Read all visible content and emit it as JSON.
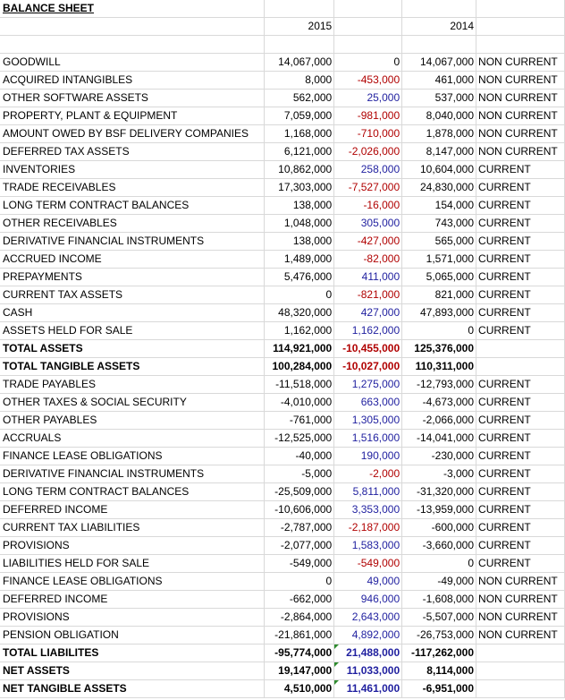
{
  "title": "BALANCE SHEET",
  "headers": {
    "col_2015": "2015",
    "col_2014": "2014"
  },
  "colors": {
    "positive_change": "#1f1f9f",
    "negative_change": "#b00000",
    "grid": "#d9d9d9",
    "comment_flag": "#2e8b2e"
  },
  "rows": [
    {
      "label": "GOODWILL",
      "y2015": "14,067,000",
      "change": "0",
      "y2014": "14,067,000",
      "class": "NON CURRENT",
      "change_sign": "zero",
      "total": false
    },
    {
      "label": "ACQUIRED INTANGIBLES",
      "y2015": "8,000",
      "change": "-453,000",
      "y2014": "461,000",
      "class": "NON CURRENT",
      "change_sign": "neg",
      "total": false
    },
    {
      "label": "OTHER SOFTWARE ASSETS",
      "y2015": "562,000",
      "change": "25,000",
      "y2014": "537,000",
      "class": "NON CURRENT",
      "change_sign": "pos",
      "total": false
    },
    {
      "label": "PROPERTY, PLANT & EQUIPMENT",
      "y2015": "7,059,000",
      "change": "-981,000",
      "y2014": "8,040,000",
      "class": "NON CURRENT",
      "change_sign": "neg",
      "total": false
    },
    {
      "label": "AMOUNT OWED BY BSF DELIVERY COMPANIES",
      "y2015": "1,168,000",
      "change": "-710,000",
      "y2014": "1,878,000",
      "class": "NON CURRENT",
      "change_sign": "neg",
      "total": false
    },
    {
      "label": "DEFERRED TAX ASSETS",
      "y2015": "6,121,000",
      "change": "-2,026,000",
      "y2014": "8,147,000",
      "class": "NON CURRENT",
      "change_sign": "neg",
      "total": false
    },
    {
      "label": "INVENTORIES",
      "y2015": "10,862,000",
      "change": "258,000",
      "y2014": "10,604,000",
      "class": "CURRENT",
      "change_sign": "pos",
      "total": false
    },
    {
      "label": "TRADE RECEIVABLES",
      "y2015": "17,303,000",
      "change": "-7,527,000",
      "y2014": "24,830,000",
      "class": "CURRENT",
      "change_sign": "neg",
      "total": false
    },
    {
      "label": "LONG TERM CONTRACT BALANCES",
      "y2015": "138,000",
      "change": "-16,000",
      "y2014": "154,000",
      "class": "CURRENT",
      "change_sign": "neg",
      "total": false
    },
    {
      "label": "OTHER RECEIVABLES",
      "y2015": "1,048,000",
      "change": "305,000",
      "y2014": "743,000",
      "class": "CURRENT",
      "change_sign": "pos",
      "total": false
    },
    {
      "label": "DERIVATIVE FINANCIAL INSTRUMENTS",
      "y2015": "138,000",
      "change": "-427,000",
      "y2014": "565,000",
      "class": "CURRENT",
      "change_sign": "neg",
      "total": false
    },
    {
      "label": "ACCRUED INCOME",
      "y2015": "1,489,000",
      "change": "-82,000",
      "y2014": "1,571,000",
      "class": "CURRENT",
      "change_sign": "neg",
      "total": false
    },
    {
      "label": "PREPAYMENTS",
      "y2015": "5,476,000",
      "change": "411,000",
      "y2014": "5,065,000",
      "class": "CURRENT",
      "change_sign": "pos",
      "total": false
    },
    {
      "label": "CURRENT TAX ASSETS",
      "y2015": "0",
      "change": "-821,000",
      "y2014": "821,000",
      "class": "CURRENT",
      "change_sign": "neg",
      "total": false
    },
    {
      "label": "CASH",
      "y2015": "48,320,000",
      "change": "427,000",
      "y2014": "47,893,000",
      "class": "CURRENT",
      "change_sign": "pos",
      "total": false
    },
    {
      "label": "ASSETS HELD FOR SALE",
      "y2015": "1,162,000",
      "change": "1,162,000",
      "y2014": "0",
      "class": "CURRENT",
      "change_sign": "pos",
      "total": false
    },
    {
      "label": "TOTAL ASSETS",
      "y2015": "114,921,000",
      "change": "-10,455,000",
      "y2014": "125,376,000",
      "class": "",
      "change_sign": "neg",
      "total": true
    },
    {
      "label": "TOTAL TANGIBLE ASSETS",
      "y2015": "100,284,000",
      "change": "-10,027,000",
      "y2014": "110,311,000",
      "class": "",
      "change_sign": "neg",
      "total": true
    },
    {
      "label": "TRADE PAYABLES",
      "y2015": "-11,518,000",
      "change": "1,275,000",
      "y2014": "-12,793,000",
      "class": "CURRENT",
      "change_sign": "pos",
      "total": false
    },
    {
      "label": "OTHER TAXES & SOCIAL SECURITY",
      "y2015": "-4,010,000",
      "change": "663,000",
      "y2014": "-4,673,000",
      "class": "CURRENT",
      "change_sign": "pos",
      "total": false
    },
    {
      "label": "OTHER PAYABLES",
      "y2015": "-761,000",
      "change": "1,305,000",
      "y2014": "-2,066,000",
      "class": "CURRENT",
      "change_sign": "pos",
      "total": false
    },
    {
      "label": "ACCRUALS",
      "y2015": "-12,525,000",
      "change": "1,516,000",
      "y2014": "-14,041,000",
      "class": "CURRENT",
      "change_sign": "pos",
      "total": false
    },
    {
      "label": "FINANCE LEASE OBLIGATIONS",
      "y2015": "-40,000",
      "change": "190,000",
      "y2014": "-230,000",
      "class": "CURRENT",
      "change_sign": "pos",
      "total": false
    },
    {
      "label": "DERIVATIVE FINANCIAL INSTRUMENTS",
      "y2015": "-5,000",
      "change": "-2,000",
      "y2014": "-3,000",
      "class": "CURRENT",
      "change_sign": "neg",
      "total": false
    },
    {
      "label": "LONG TERM CONTRACT BALANCES",
      "y2015": "-25,509,000",
      "change": "5,811,000",
      "y2014": "-31,320,000",
      "class": "CURRENT",
      "change_sign": "pos",
      "total": false
    },
    {
      "label": "DEFERRED INCOME",
      "y2015": "-10,606,000",
      "change": "3,353,000",
      "y2014": "-13,959,000",
      "class": "CURRENT",
      "change_sign": "pos",
      "total": false
    },
    {
      "label": "CURRENT TAX LIABILITIES",
      "y2015": "-2,787,000",
      "change": "-2,187,000",
      "y2014": "-600,000",
      "class": "CURRENT",
      "change_sign": "neg",
      "total": false
    },
    {
      "label": "PROVISIONS",
      "y2015": "-2,077,000",
      "change": "1,583,000",
      "y2014": "-3,660,000",
      "class": "CURRENT",
      "change_sign": "pos",
      "total": false
    },
    {
      "label": "LIABILITIES HELD FOR SALE",
      "y2015": "-549,000",
      "change": "-549,000",
      "y2014": "0",
      "class": "CURRENT",
      "change_sign": "neg",
      "total": false
    },
    {
      "label": "FINANCE LEASE OBLIGATIONS",
      "y2015": "0",
      "change": "49,000",
      "y2014": "-49,000",
      "class": "NON CURRENT",
      "change_sign": "pos",
      "total": false
    },
    {
      "label": "DEFERRED INCOME",
      "y2015": "-662,000",
      "change": "946,000",
      "y2014": "-1,608,000",
      "class": "NON CURRENT",
      "change_sign": "pos",
      "total": false
    },
    {
      "label": "PROVISIONS",
      "y2015": "-2,864,000",
      "change": "2,643,000",
      "y2014": "-5,507,000",
      "class": "NON CURRENT",
      "change_sign": "pos",
      "total": false
    },
    {
      "label": "PENSION OBLIGATION",
      "y2015": "-21,861,000",
      "change": "4,892,000",
      "y2014": "-26,753,000",
      "class": "NON CURRENT",
      "change_sign": "pos",
      "total": false
    },
    {
      "label": "TOTAL LIABILITES",
      "y2015": "-95,774,000",
      "change": "21,488,000",
      "y2014": "-117,262,000",
      "class": "",
      "change_sign": "pos",
      "total": true
    },
    {
      "label": "NET ASSETS",
      "y2015": "19,147,000",
      "change": "11,033,000",
      "y2014": "8,114,000",
      "class": "",
      "change_sign": "pos",
      "total": true
    },
    {
      "label": "NET TANGIBLE ASSETS",
      "y2015": "4,510,000",
      "change": "11,461,000",
      "y2014": "-6,951,000",
      "class": "",
      "change_sign": "pos",
      "total": true
    }
  ]
}
